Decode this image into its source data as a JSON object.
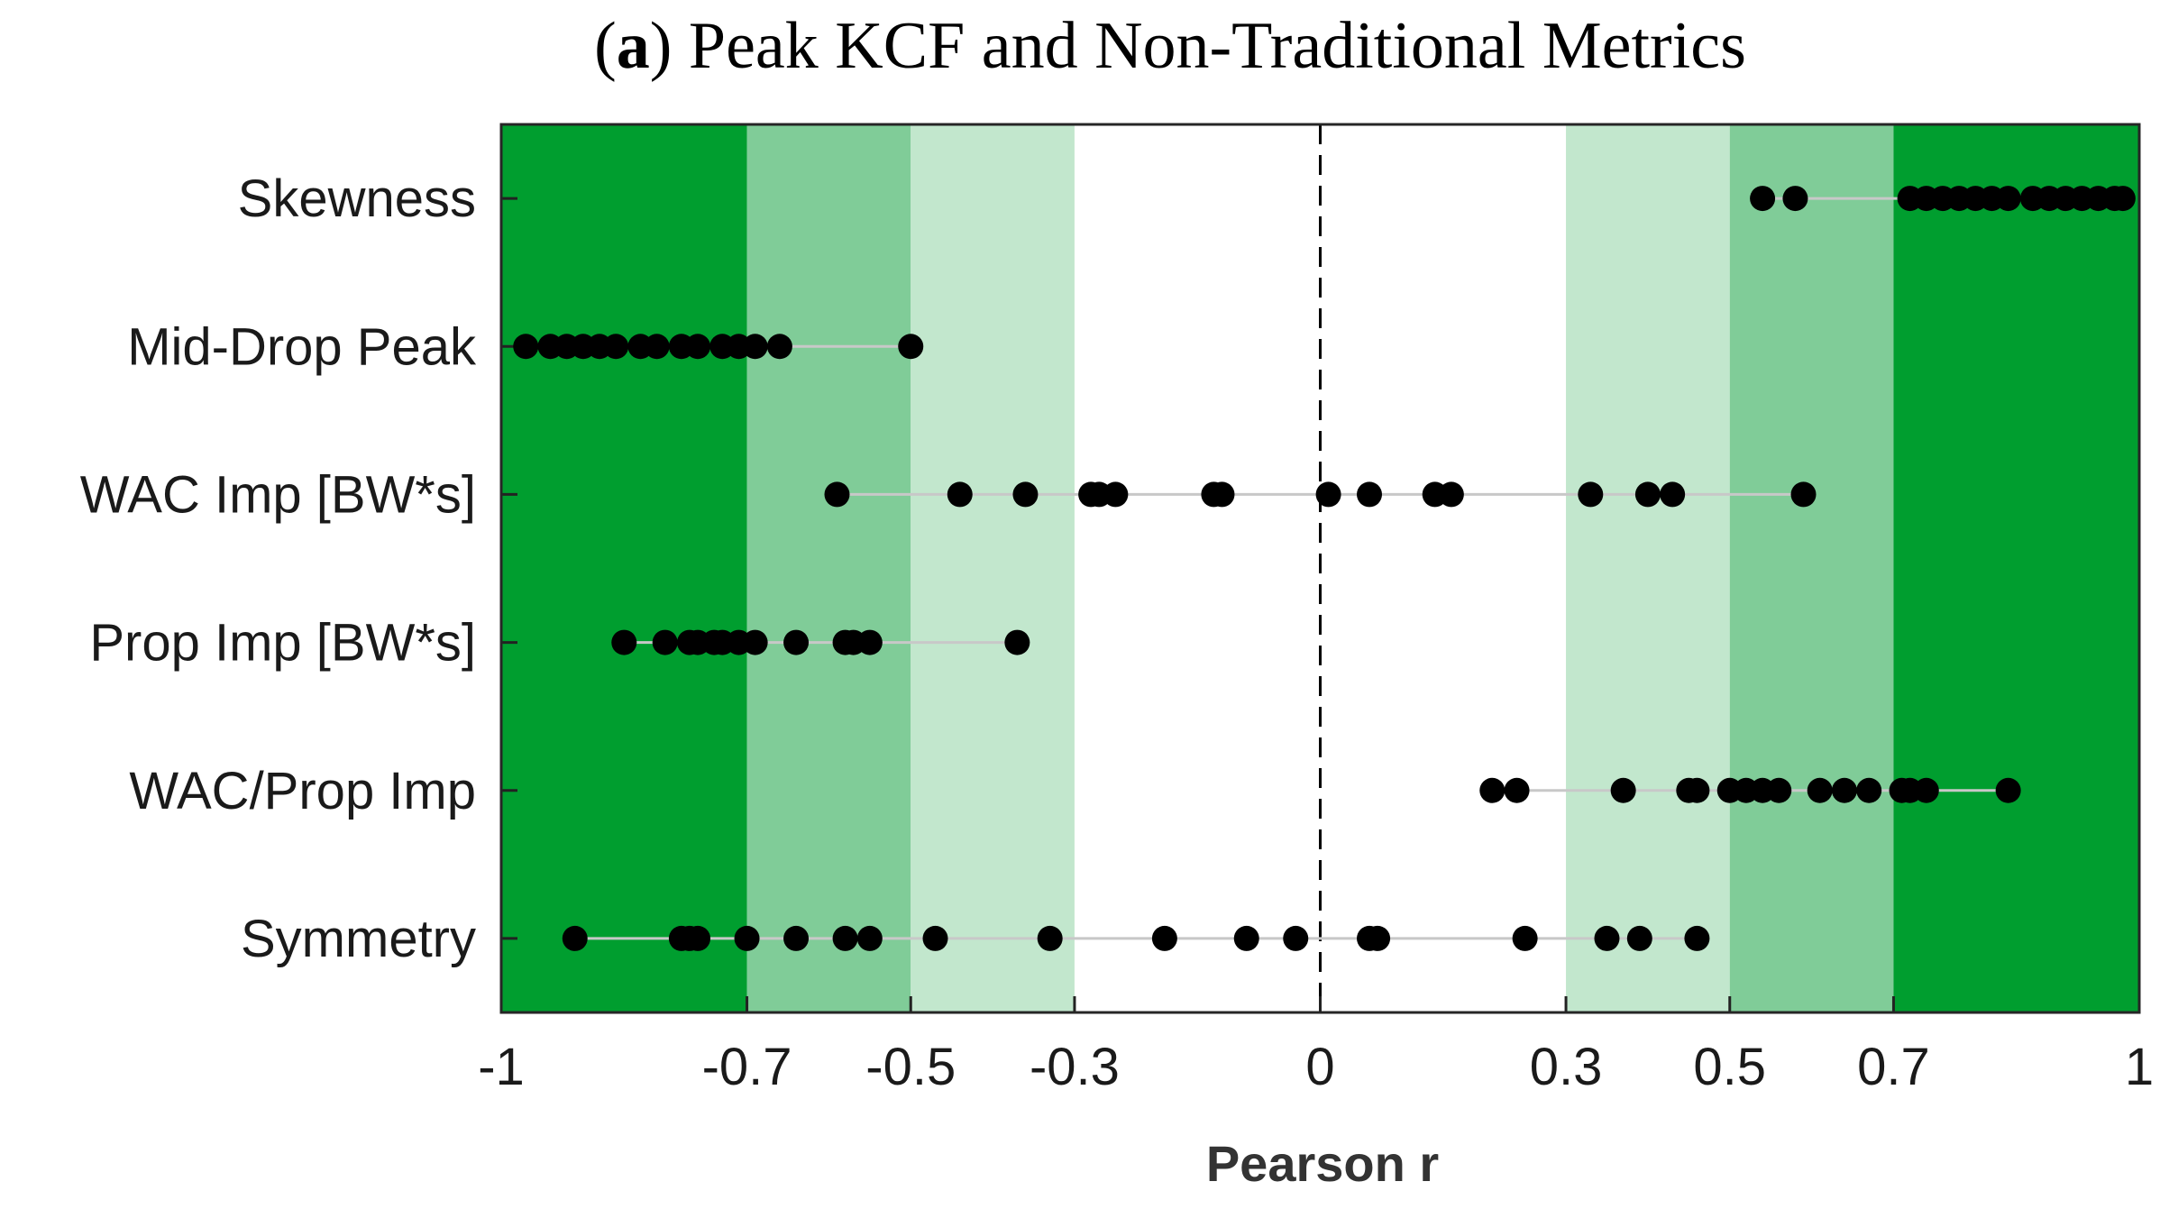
{
  "chart_data": {
    "type": "scatter",
    "title_prefix": "a",
    "title": "Peak KCF and Non-Traditional Metrics",
    "xlabel": "Pearson r",
    "ylabel": "",
    "xlim": [
      -1,
      1
    ],
    "xticks": [
      -1,
      -0.7,
      -0.5,
      -0.3,
      0,
      0.3,
      0.5,
      0.7,
      1
    ],
    "xtick_labels": [
      "-1",
      "-0.7",
      "-0.5",
      "-0.3",
      "0",
      "0.3",
      "0.5",
      "0.7",
      "1"
    ],
    "reference_line": 0,
    "bands": [
      {
        "from": -1.0,
        "to": -0.7,
        "color": "#009e2f",
        "strength": "strong"
      },
      {
        "from": -0.7,
        "to": -0.5,
        "color": "#80cc98",
        "strength": "moderate"
      },
      {
        "from": -0.5,
        "to": -0.3,
        "color": "#c2e7cd",
        "strength": "weak"
      },
      {
        "from": -0.3,
        "to": 0.3,
        "color": "#ffffff",
        "strength": "negligible"
      },
      {
        "from": 0.3,
        "to": 0.5,
        "color": "#c2e7cd",
        "strength": "weak"
      },
      {
        "from": 0.5,
        "to": 0.7,
        "color": "#80cc98",
        "strength": "moderate"
      },
      {
        "from": 0.7,
        "to": 1.0,
        "color": "#009e2f",
        "strength": "strong"
      }
    ],
    "categories": [
      "Skewness",
      "Mid-Drop Peak",
      "WAC Imp [BW*s]",
      "Prop Imp [BW*s]",
      "WAC/Prop Imp",
      "Symmetry"
    ],
    "series": [
      {
        "name": "Skewness",
        "values": [
          0.54,
          0.58,
          0.72,
          0.74,
          0.76,
          0.78,
          0.8,
          0.82,
          0.84,
          0.87,
          0.89,
          0.91,
          0.93,
          0.95,
          0.97,
          0.98
        ]
      },
      {
        "name": "Mid-Drop Peak",
        "values": [
          -0.97,
          -0.94,
          -0.92,
          -0.9,
          -0.88,
          -0.86,
          -0.83,
          -0.81,
          -0.78,
          -0.76,
          -0.73,
          -0.71,
          -0.69,
          -0.66,
          -0.5
        ]
      },
      {
        "name": "WAC Imp [BW*s]",
        "values": [
          -0.59,
          -0.44,
          -0.36,
          -0.28,
          -0.27,
          -0.25,
          -0.13,
          -0.12,
          0.01,
          0.06,
          0.14,
          0.16,
          0.33,
          0.4,
          0.43,
          0.59
        ]
      },
      {
        "name": "Prop Imp [BW*s]",
        "values": [
          -0.85,
          -0.8,
          -0.77,
          -0.76,
          -0.74,
          -0.73,
          -0.71,
          -0.69,
          -0.64,
          -0.58,
          -0.57,
          -0.55,
          -0.37
        ]
      },
      {
        "name": "WAC/Prop Imp",
        "values": [
          0.21,
          0.24,
          0.37,
          0.45,
          0.46,
          0.5,
          0.52,
          0.54,
          0.56,
          0.61,
          0.64,
          0.67,
          0.71,
          0.72,
          0.74,
          0.84
        ]
      },
      {
        "name": "Symmetry",
        "values": [
          -0.91,
          -0.78,
          -0.77,
          -0.76,
          -0.7,
          -0.64,
          -0.58,
          -0.55,
          -0.47,
          -0.33,
          -0.19,
          -0.09,
          -0.03,
          0.06,
          0.07,
          0.25,
          0.35,
          0.39,
          0.46
        ]
      }
    ],
    "colors": {
      "marker": "#000000",
      "range_line": "#c8c8c8",
      "reference_line": "#000000",
      "text": "#1a1a1a",
      "axis_label": "#333333"
    },
    "grid": false,
    "legend": "none"
  }
}
